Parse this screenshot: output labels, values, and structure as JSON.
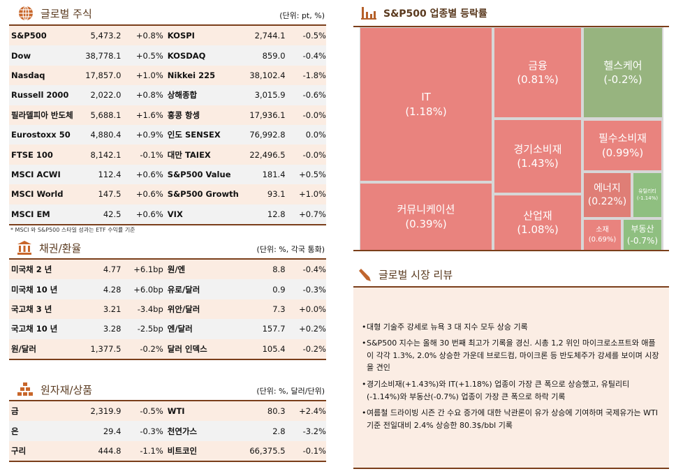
{
  "global_stocks": {
    "title": "글로벌 주식",
    "unit": "(단위: pt, %)",
    "note": "* MSCI 와 S&P500 스타일 성과는 ETF 수익률 기준",
    "rows": [
      [
        "S&P500",
        "5,473.2",
        "+0.8%",
        "KOSPI",
        "2,744.1",
        "-0.5%"
      ],
      [
        "Dow",
        "38,778.1",
        "+0.5%",
        "KOSDAQ",
        "859.0",
        "-0.4%"
      ],
      [
        "Nasdaq",
        "17,857.0",
        "+1.0%",
        "Nikkei 225",
        "38,102.4",
        "-1.8%"
      ],
      [
        "Russell 2000",
        "2,022.0",
        "+0.8%",
        "상해종합",
        "3,015.9",
        "-0.6%"
      ],
      [
        "필라델피아 반도체",
        "5,688.1",
        "+1.6%",
        "홍콩 항셍",
        "17,936.1",
        "-0.0%"
      ],
      [
        "Eurostoxx 50",
        "4,880.4",
        "+0.9%",
        "인도 SENSEX",
        "76,992.8",
        "0.0%"
      ],
      [
        "FTSE 100",
        "8,142.1",
        "-0.1%",
        "대만 TAIEX",
        "22,496.5",
        "-0.0%"
      ],
      [
        "MSCI ACWI",
        "112.4",
        "+0.6%",
        "S&P500 Value",
        "181.4",
        "+0.5%"
      ],
      [
        "MSCI World",
        "147.5",
        "+0.6%",
        "S&P500 Growth",
        "93.1",
        "+1.0%"
      ],
      [
        "MSCI EM",
        "42.5",
        "+0.6%",
        "VIX",
        "12.8",
        "+0.7%"
      ]
    ]
  },
  "bonds_fx": {
    "title": "채권/환율",
    "unit": "(단위: %, 각국 통화)",
    "rows": [
      [
        "미국채 2 년",
        "4.77",
        "+6.1bp",
        "원/엔",
        "8.8",
        "-0.4%"
      ],
      [
        "미국채 10 년",
        "4.28",
        "+6.0bp",
        "유로/달러",
        "0.9",
        "-0.3%"
      ],
      [
        "국고채 3 년",
        "3.21",
        "-3.4bp",
        "위안/달러",
        "7.3",
        "+0.0%"
      ],
      [
        "국고채 10 년",
        "3.28",
        "-2.5bp",
        "엔/달러",
        "157.7",
        "+0.2%"
      ],
      [
        "원/달러",
        "1,377.5",
        "-0.2%",
        "달러 인덱스",
        "105.4",
        "-0.2%"
      ]
    ]
  },
  "commodities": {
    "title": "원자재/상품",
    "unit": "(단위: %, 달러/단위)",
    "rows": [
      [
        "금",
        "2,319.9",
        "-0.5%",
        "WTI",
        "80.3",
        "+2.4%"
      ],
      [
        "은",
        "29.4",
        "-0.3%",
        "천연가스",
        "2.8",
        "-3.2%"
      ],
      [
        "구리",
        "444.8",
        "-1.1%",
        "비트코인",
        "66,375.5",
        "-0.1%"
      ]
    ]
  },
  "treemap": {
    "title": "S&P500 업종별 등락률",
    "colors": {
      "up": "#e9837e",
      "down": "#97b47f",
      "down_light": "#8fbf80"
    },
    "sectors": [
      {
        "name": "IT",
        "value": "(1.18%)"
      },
      {
        "name": "커뮤니케이션",
        "value": "(0.39%)"
      },
      {
        "name": "금융",
        "value": "(0.81%)"
      },
      {
        "name": "경기소비재",
        "value": "(1.43%)"
      },
      {
        "name": "산업재",
        "value": "(1.08%)"
      },
      {
        "name": "헬스케어",
        "value": "(-0.2%)"
      },
      {
        "name": "필수소비재",
        "value": "(0.99%)"
      },
      {
        "name": "에너지",
        "value": "(0.22%)"
      },
      {
        "name": "유틸리티",
        "value": "(-1.14%)"
      },
      {
        "name": "소재",
        "value": "(0.69%)"
      },
      {
        "name": "부동산",
        "value": "(-0.7%)"
      }
    ]
  },
  "review": {
    "title": "글로벌 시장 리뷰",
    "bullets": [
      "대형 기술주 강세로 뉴욕 3 대 지수 모두 상승 기록",
      "S&P500 지수는 올해 30 번째 최고가 기록을 경신. 시총 1,2 위인 마이크로소프트와 애플이 각각 1.3%, 2.0% 상승한 가운데 브로드컴, 마이크론 등 반도체주가 강세를 보이며 시장을 견인",
      "경기소비재(+1.43%)와 IT(+1.18%) 업종이 가장 큰 폭으로 상승했고, 유틸리티(-1.14%)와 부동산(-0.7%) 업종이 가장 큰 폭으로 하락 기록",
      "여름철 드라이빙 시즌 간 수요 증가에 대한 낙관론이 유가 상승에 기여하며 국제유가는 WTI 기준 전일대비 2.4% 상승한 80.3$/bbl 기록"
    ]
  }
}
